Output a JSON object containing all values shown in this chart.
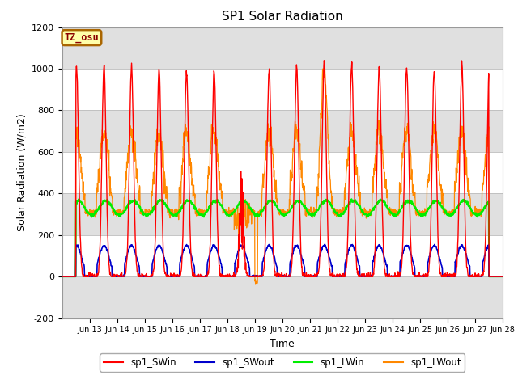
{
  "title": "SP1 Solar Radiation",
  "ylabel": "Solar Radiation (W/m2)",
  "xlabel": "Time",
  "ylim": [
    -200,
    1200
  ],
  "xlim_days": [
    12.0,
    28.0
  ],
  "tick_days": [
    13,
    14,
    15,
    16,
    17,
    18,
    19,
    20,
    21,
    22,
    23,
    24,
    25,
    26,
    27,
    28
  ],
  "tick_labels": [
    "Jun 13",
    "Jun 14",
    "Jun 15",
    "Jun 16",
    "Jun 17",
    "Jun 18",
    "Jun 19",
    "Jun 20",
    "Jun 21",
    "Jun 22",
    "Jun 23",
    "Jun 24",
    "Jun 25",
    "Jun 26",
    "Jun 27",
    "Jun 28"
  ],
  "colors": {
    "SWin": "#ff0000",
    "SWout": "#0000cc",
    "LWin": "#00ee00",
    "LWout": "#ff8800"
  },
  "legend_labels": [
    "sp1_SWin",
    "sp1_SWout",
    "sp1_LWin",
    "sp1_LWout"
  ],
  "tz_label": "TZ_osu",
  "tz_bg": "#ffffaa",
  "tz_edge": "#aa6600",
  "plot_bg": "#ffffff",
  "fig_bg": "#ffffff",
  "band_gray": "#e0e0e0",
  "yticks": [
    -200,
    0,
    200,
    400,
    600,
    800,
    1000,
    1200
  ],
  "SWin_peaks": [
    1010,
    1015,
    1005,
    995,
    980,
    990,
    985,
    995,
    1015,
    1035,
    1020,
    1015,
    1005,
    985,
    1025
  ],
  "SWout_peak": 150,
  "LWin_base": 330,
  "LWin_amp": 35,
  "LWout_base": 340,
  "LWout_day_peak": 650
}
